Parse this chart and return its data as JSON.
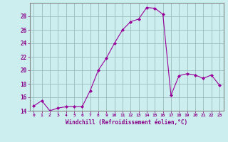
{
  "x": [
    0,
    1,
    2,
    3,
    4,
    5,
    6,
    7,
    8,
    9,
    10,
    11,
    12,
    13,
    14,
    15,
    16,
    17,
    18,
    19,
    20,
    21,
    22,
    23
  ],
  "y": [
    14.7,
    15.5,
    14.0,
    14.4,
    14.6,
    14.6,
    14.6,
    17.0,
    20.0,
    21.8,
    24.0,
    26.0,
    27.2,
    27.6,
    29.3,
    29.2,
    28.3,
    16.3,
    19.2,
    19.5,
    19.3,
    18.8,
    19.3,
    17.8
  ],
  "line_color": "#990099",
  "marker_color": "#990099",
  "bg_color": "#cceeee",
  "grid_color": "#99bbbb",
  "xlabel": "Windchill (Refroidissement éolien,°C)",
  "ylim": [
    14,
    30
  ],
  "yticks": [
    14,
    16,
    18,
    20,
    22,
    24,
    26,
    28
  ],
  "xlim": [
    -0.5,
    23.5
  ],
  "xticks": [
    0,
    1,
    2,
    3,
    4,
    5,
    6,
    7,
    8,
    9,
    10,
    11,
    12,
    13,
    14,
    15,
    16,
    17,
    18,
    19,
    20,
    21,
    22,
    23
  ],
  "font_color": "#880088",
  "spine_color": "#888888"
}
